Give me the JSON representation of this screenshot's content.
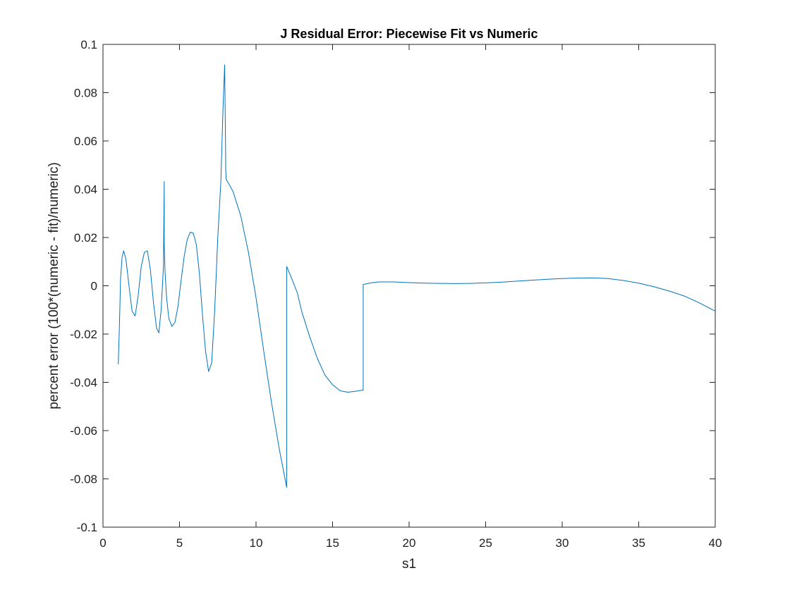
{
  "chart_data": {
    "type": "line",
    "title": "J Residual Error: Piecewise Fit vs Numeric",
    "xlabel": "s1",
    "ylabel": "percent error    (100*(numeric - fit)/numeric)",
    "xlim": [
      0,
      40
    ],
    "ylim": [
      -0.1,
      0.1
    ],
    "xticks": [
      0,
      5,
      10,
      15,
      20,
      25,
      30,
      35,
      40
    ],
    "xtick_labels": [
      "0",
      "5",
      "10",
      "15",
      "20",
      "25",
      "30",
      "35",
      "40"
    ],
    "yticks": [
      -0.1,
      -0.08,
      -0.06,
      -0.04,
      -0.02,
      0,
      0.02,
      0.04,
      0.06,
      0.08,
      0.1
    ],
    "ytick_labels": [
      "-0.1",
      "-0.08",
      "-0.06",
      "-0.04",
      "-0.02",
      "0",
      "0.02",
      "0.04",
      "0.06",
      "0.08",
      "0.1"
    ],
    "grid": false,
    "series_color": "#0072BD",
    "series": [
      {
        "x": [
          1.0,
          1.08,
          1.15,
          1.25,
          1.35,
          1.5,
          1.7,
          1.9,
          2.1,
          2.3,
          2.5,
          2.7,
          2.9,
          3.1,
          3.3,
          3.5,
          3.65,
          3.8,
          3.95,
          4.0,
          4.0,
          4.05,
          4.15,
          4.3,
          4.5,
          4.7,
          4.9,
          5.1,
          5.3,
          5.5,
          5.7,
          5.9,
          6.1,
          6.3,
          6.5,
          6.7,
          6.9,
          7.1,
          7.3,
          7.5,
          7.7,
          7.85,
          7.95,
          8.0,
          8.02,
          8.05,
          8.1,
          8.2,
          8.5,
          9.0,
          9.5,
          10.0,
          10.5,
          11.0,
          11.5,
          12.0,
          12.0,
          12.0,
          12.3,
          12.7,
          13.0,
          13.5,
          14.0,
          14.5,
          15.0,
          15.5,
          16.0,
          16.5,
          16.9,
          17.0,
          17.0,
          17.5,
          18.0,
          19.0,
          20.0,
          21.0,
          22.0,
          23.0,
          24.0,
          25.0,
          26.0,
          27.0,
          28.0,
          29.0,
          30.0,
          31.0,
          32.0,
          33.0,
          34.0,
          35.0,
          36.0,
          37.0,
          38.0,
          39.0,
          40.0
        ],
        "y": [
          -0.0325,
          -0.015,
          0.003,
          0.012,
          0.0145,
          0.011,
          0.0,
          -0.0105,
          -0.0125,
          -0.004,
          0.008,
          0.0138,
          0.0145,
          0.0065,
          -0.007,
          -0.0175,
          -0.0195,
          -0.01,
          0.008,
          0.0432,
          0.0175,
          0.0065,
          -0.0045,
          -0.0135,
          -0.0168,
          -0.0152,
          -0.0085,
          0.002,
          0.012,
          0.019,
          0.0222,
          0.0218,
          0.017,
          0.005,
          -0.012,
          -0.027,
          -0.0355,
          -0.032,
          -0.01,
          0.02,
          0.043,
          0.075,
          0.0915,
          0.063,
          0.048,
          0.044,
          0.0435,
          0.0425,
          0.039,
          0.029,
          0.014,
          -0.005,
          -0.027,
          -0.048,
          -0.067,
          -0.0835,
          -0.065,
          0.008,
          0.0035,
          -0.003,
          -0.011,
          -0.021,
          -0.03,
          -0.037,
          -0.041,
          -0.0435,
          -0.0441,
          -0.0437,
          -0.0433,
          -0.0433,
          0.0005,
          0.0012,
          0.0016,
          0.0016,
          0.0013,
          0.0011,
          0.001,
          0.0009,
          0.001,
          0.0012,
          0.0015,
          0.0019,
          0.0023,
          0.0027,
          0.003,
          0.0032,
          0.0033,
          0.003,
          0.0022,
          0.0011,
          -0.0004,
          -0.0022,
          -0.0043,
          -0.0072,
          -0.0105
        ]
      }
    ]
  }
}
